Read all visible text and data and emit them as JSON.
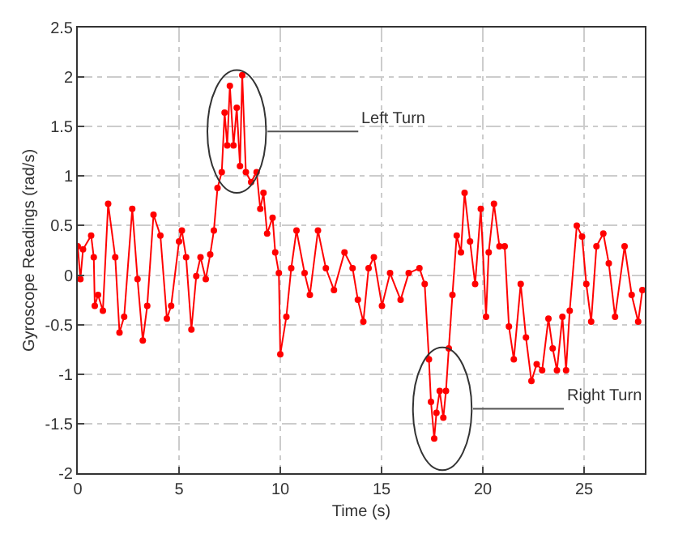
{
  "chart_data": {
    "type": "line",
    "xlabel": "Time (s)",
    "ylabel": "Gyroscope Readings (rad/s)",
    "xlim": [
      0,
      28
    ],
    "ylim": [
      -2,
      2.5
    ],
    "xticks": [
      0,
      5,
      10,
      15,
      20,
      25
    ],
    "yticks": [
      -2,
      -1.5,
      -1,
      -0.5,
      0,
      0.5,
      1,
      1.5,
      2,
      2.5
    ],
    "grid": true,
    "marker": "circle",
    "line_style": "solid",
    "annotations": [
      {
        "text": "Left Turn",
        "x": 7.85,
        "y": 1.45
      },
      {
        "text": "Right Turn",
        "x": 18,
        "y": -1.35
      }
    ],
    "series": [
      {
        "color": "#ff0000",
        "x": [
          0,
          0.13,
          0.26,
          0.66,
          0.79,
          0.84,
          1.0,
          1.24,
          1.5,
          1.85,
          2.06,
          2.29,
          2.69,
          2.95,
          3.21,
          3.43,
          3.74,
          4.08,
          4.4,
          4.61,
          5.0,
          5.14,
          5.35,
          5.61,
          5.85,
          6.06,
          6.32,
          6.54,
          6.72,
          6.9,
          7.11,
          7.25,
          7.38,
          7.51,
          7.69,
          7.85,
          8.01,
          8.12,
          8.3,
          8.56,
          8.83,
          9.01,
          9.17,
          9.35,
          9.62,
          9.75,
          9.93,
          10.0,
          10.3,
          10.54,
          10.8,
          11.2,
          11.46,
          11.86,
          12.25,
          12.65,
          13.17,
          13.57,
          13.83,
          14.1,
          14.36,
          14.62,
          15.02,
          15.42,
          15.94,
          16.34,
          16.87,
          17.13,
          17.34,
          17.44,
          17.6,
          17.71,
          17.87,
          18.05,
          18.18,
          18.32,
          18.5,
          18.71,
          18.92,
          19.1,
          19.37,
          19.62,
          19.9,
          20.16,
          20.29,
          20.55,
          20.82,
          21.08,
          21.29,
          21.53,
          21.87,
          22.13,
          22.4,
          22.66,
          22.93,
          23.24,
          23.45,
          23.66,
          23.93,
          24.11,
          24.29,
          24.64,
          24.9,
          25.11,
          25.35,
          25.61,
          25.95,
          26.22,
          26.53,
          27.0,
          27.35,
          27.67,
          27.88
        ],
        "values": [
          0.29,
          -0.04,
          0.26,
          0.4,
          0.18,
          -0.31,
          -0.2,
          -0.36,
          0.72,
          0.18,
          -0.58,
          -0.42,
          0.67,
          -0.04,
          -0.66,
          -0.31,
          0.61,
          0.4,
          -0.44,
          -0.31,
          0.34,
          0.45,
          0.18,
          -0.55,
          -0.01,
          0.18,
          -0.04,
          0.21,
          0.45,
          0.88,
          1.04,
          1.64,
          1.31,
          1.91,
          1.31,
          1.69,
          1.1,
          2.02,
          1.04,
          0.94,
          1.04,
          0.67,
          0.83,
          0.42,
          0.58,
          0.23,
          0.02,
          -0.8,
          -0.42,
          0.07,
          0.45,
          0.02,
          -0.2,
          0.45,
          0.07,
          -0.15,
          0.23,
          0.07,
          -0.25,
          -0.47,
          0.07,
          0.18,
          -0.31,
          0.02,
          -0.25,
          0.02,
          0.07,
          -0.09,
          -0.85,
          -1.28,
          -1.65,
          -1.39,
          -1.17,
          -1.44,
          -1.17,
          -0.74,
          -0.2,
          0.4,
          0.23,
          0.83,
          0.34,
          -0.09,
          0.67,
          -0.42,
          0.23,
          0.72,
          0.29,
          0.29,
          -0.52,
          -0.85,
          -0.09,
          -0.63,
          -1.07,
          -0.9,
          -0.96,
          -0.44,
          -0.74,
          -0.96,
          -0.42,
          -0.96,
          -0.36,
          0.5,
          0.39,
          -0.09,
          -0.47,
          0.29,
          0.42,
          0.12,
          -0.42,
          0.29,
          -0.2,
          -0.47,
          -0.15
        ]
      }
    ]
  }
}
